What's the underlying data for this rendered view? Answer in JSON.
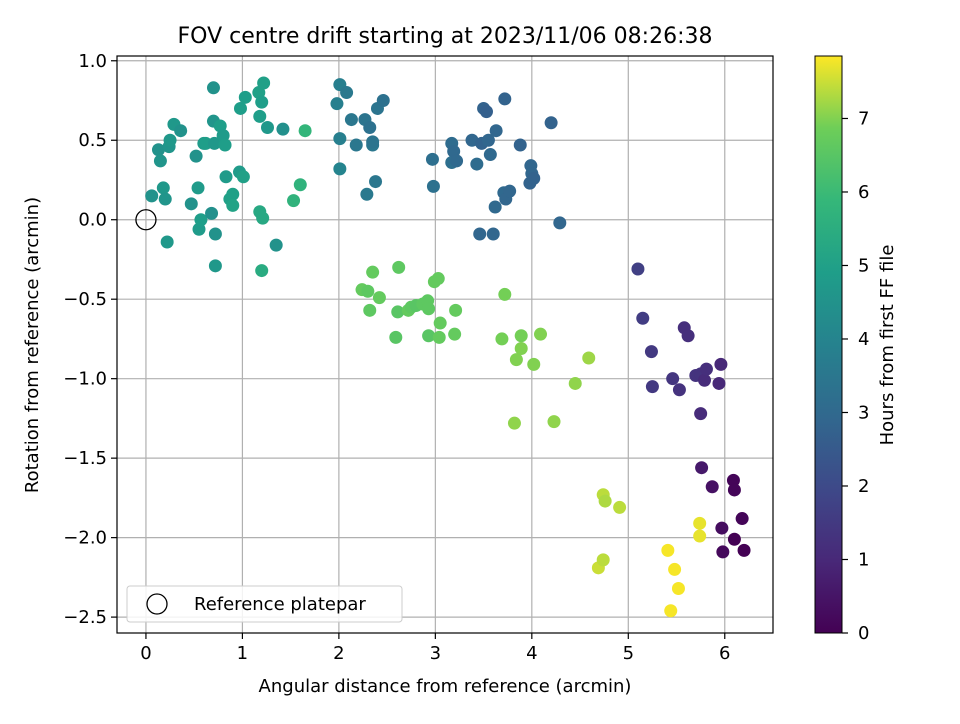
{
  "chart_data": {
    "type": "scatter",
    "title": "FOV centre drift starting at 2023/11/06 08:26:38",
    "xlabel": "Angular distance from reference (arcmin)",
    "ylabel": "Rotation from reference (arcmin)",
    "xlim": [
      -0.3,
      6.5
    ],
    "ylim": [
      -2.6,
      1.03
    ],
    "xticks": [
      0,
      1,
      2,
      3,
      4,
      5,
      6
    ],
    "yticks": [
      -2.5,
      -2.0,
      -1.5,
      -1.0,
      -0.5,
      0.0,
      0.5,
      1.0
    ],
    "xtick_labels": [
      "0",
      "1",
      "2",
      "3",
      "4",
      "5",
      "6"
    ],
    "ytick_labels": [
      "−2.5",
      "−2.0",
      "−1.5",
      "−1.0",
      "−0.5",
      "0.0",
      "0.5",
      "1.0"
    ],
    "grid": true,
    "colormap": "viridis",
    "colorbar": {
      "label": "Hours from first FF file",
      "range": [
        0,
        7.85
      ],
      "ticks": [
        0,
        1,
        2,
        3,
        4,
        5,
        6,
        7
      ],
      "tick_labels": [
        "0",
        "1",
        "2",
        "3",
        "4",
        "5",
        "6",
        "7"
      ]
    },
    "legend": {
      "position": "lower-left",
      "entries": [
        {
          "label": "Reference platepar",
          "marker": "open-circle"
        }
      ]
    },
    "reference_point": {
      "x": 0,
      "y": 0
    },
    "points": [
      {
        "x": 0.06,
        "y": 0.15,
        "h": 4.5
      },
      {
        "x": 0.13,
        "y": 0.44,
        "h": 4.5
      },
      {
        "x": 0.15,
        "y": 0.37,
        "h": 4.6
      },
      {
        "x": 0.18,
        "y": 0.2,
        "h": 4.7
      },
      {
        "x": 0.2,
        "y": 0.13,
        "h": 4.6
      },
      {
        "x": 0.22,
        "y": -0.14,
        "h": 4.7
      },
      {
        "x": 0.24,
        "y": 0.46,
        "h": 4.6
      },
      {
        "x": 0.25,
        "y": 0.5,
        "h": 4.7
      },
      {
        "x": 0.29,
        "y": 0.6,
        "h": 4.7
      },
      {
        "x": 0.36,
        "y": 0.56,
        "h": 4.5
      },
      {
        "x": 0.47,
        "y": 0.1,
        "h": 4.5
      },
      {
        "x": 0.52,
        "y": 0.4,
        "h": 4.5
      },
      {
        "x": 0.54,
        "y": 0.2,
        "h": 4.8
      },
      {
        "x": 0.55,
        "y": -0.06,
        "h": 4.8
      },
      {
        "x": 0.57,
        "y": 0.0,
        "h": 4.9
      },
      {
        "x": 0.6,
        "y": 0.48,
        "h": 4.8
      },
      {
        "x": 0.62,
        "y": 0.48,
        "h": 4.9
      },
      {
        "x": 0.68,
        "y": 0.04,
        "h": 4.4
      },
      {
        "x": 0.7,
        "y": 0.83,
        "h": 4.5
      },
      {
        "x": 0.7,
        "y": 0.62,
        "h": 4.6
      },
      {
        "x": 0.71,
        "y": 0.48,
        "h": 4.7
      },
      {
        "x": 0.72,
        "y": -0.09,
        "h": 4.5
      },
      {
        "x": 0.72,
        "y": -0.29,
        "h": 4.7
      },
      {
        "x": 0.77,
        "y": 0.59,
        "h": 4.9
      },
      {
        "x": 0.8,
        "y": 0.53,
        "h": 4.8
      },
      {
        "x": 0.82,
        "y": 0.47,
        "h": 4.9
      },
      {
        "x": 0.83,
        "y": 0.27,
        "h": 4.8
      },
      {
        "x": 0.87,
        "y": 0.13,
        "h": 5.0
      },
      {
        "x": 0.9,
        "y": 0.16,
        "h": 5.0
      },
      {
        "x": 0.9,
        "y": 0.09,
        "h": 5.1
      },
      {
        "x": 0.97,
        "y": 0.3,
        "h": 4.8
      },
      {
        "x": 0.98,
        "y": 0.7,
        "h": 4.9
      },
      {
        "x": 1.03,
        "y": 0.77,
        "h": 4.9
      },
      {
        "x": 1.01,
        "y": 0.27,
        "h": 5.0
      },
      {
        "x": 1.17,
        "y": 0.8,
        "h": 5.0
      },
      {
        "x": 1.18,
        "y": 0.65,
        "h": 4.9
      },
      {
        "x": 1.2,
        "y": 0.74,
        "h": 4.9
      },
      {
        "x": 1.22,
        "y": 0.86,
        "h": 5.0
      },
      {
        "x": 1.26,
        "y": 0.58,
        "h": 4.7
      },
      {
        "x": 1.18,
        "y": 0.05,
        "h": 5.3
      },
      {
        "x": 1.21,
        "y": 0.01,
        "h": 5.3
      },
      {
        "x": 1.2,
        "y": -0.32,
        "h": 5.4
      },
      {
        "x": 1.35,
        "y": -0.16,
        "h": 4.5
      },
      {
        "x": 1.42,
        "y": 0.57,
        "h": 4.4
      },
      {
        "x": 1.53,
        "y": 0.12,
        "h": 5.7
      },
      {
        "x": 1.6,
        "y": 0.22,
        "h": 5.7
      },
      {
        "x": 1.65,
        "y": 0.56,
        "h": 5.8
      },
      {
        "x": 1.98,
        "y": 0.73,
        "h": 3.8
      },
      {
        "x": 2.01,
        "y": 0.85,
        "h": 3.8
      },
      {
        "x": 2.01,
        "y": 0.51,
        "h": 3.8
      },
      {
        "x": 2.01,
        "y": 0.32,
        "h": 4.0
      },
      {
        "x": 2.08,
        "y": 0.8,
        "h": 3.6
      },
      {
        "x": 2.13,
        "y": 0.63,
        "h": 3.5
      },
      {
        "x": 2.18,
        "y": 0.47,
        "h": 3.5
      },
      {
        "x": 2.27,
        "y": 0.63,
        "h": 3.4
      },
      {
        "x": 2.29,
        "y": 0.16,
        "h": 3.6
      },
      {
        "x": 2.32,
        "y": 0.58,
        "h": 3.3
      },
      {
        "x": 2.35,
        "y": 0.47,
        "h": 3.5
      },
      {
        "x": 2.35,
        "y": 0.49,
        "h": 3.4
      },
      {
        "x": 2.38,
        "y": 0.24,
        "h": 3.5
      },
      {
        "x": 2.4,
        "y": 0.7,
        "h": 3.4
      },
      {
        "x": 2.46,
        "y": 0.75,
        "h": 3.3
      },
      {
        "x": 2.97,
        "y": 0.38,
        "h": 3.2
      },
      {
        "x": 2.98,
        "y": 0.21,
        "h": 3.3
      },
      {
        "x": 3.17,
        "y": 0.48,
        "h": 3.1
      },
      {
        "x": 3.17,
        "y": 0.36,
        "h": 3.2
      },
      {
        "x": 3.19,
        "y": 0.43,
        "h": 3.0
      },
      {
        "x": 3.22,
        "y": 0.37,
        "h": 3.0
      },
      {
        "x": 3.38,
        "y": 0.5,
        "h": 2.9
      },
      {
        "x": 3.43,
        "y": 0.35,
        "h": 3.1
      },
      {
        "x": 3.46,
        "y": -0.09,
        "h": 2.9
      },
      {
        "x": 3.48,
        "y": 0.48,
        "h": 2.8
      },
      {
        "x": 3.5,
        "y": 0.7,
        "h": 2.8
      },
      {
        "x": 3.53,
        "y": 0.68,
        "h": 2.7
      },
      {
        "x": 3.55,
        "y": 0.5,
        "h": 2.9
      },
      {
        "x": 3.57,
        "y": 0.41,
        "h": 3.0
      },
      {
        "x": 3.6,
        "y": -0.09,
        "h": 2.9
      },
      {
        "x": 3.62,
        "y": 0.08,
        "h": 3.0
      },
      {
        "x": 3.63,
        "y": 0.56,
        "h": 2.9
      },
      {
        "x": 3.71,
        "y": 0.17,
        "h": 3.0
      },
      {
        "x": 3.72,
        "y": 0.76,
        "h": 2.8
      },
      {
        "x": 3.73,
        "y": 0.13,
        "h": 2.9
      },
      {
        "x": 3.77,
        "y": 0.18,
        "h": 2.9
      },
      {
        "x": 3.88,
        "y": 0.47,
        "h": 2.8
      },
      {
        "x": 3.98,
        "y": 0.23,
        "h": 2.8
      },
      {
        "x": 3.99,
        "y": 0.34,
        "h": 2.9
      },
      {
        "x": 4.0,
        "y": 0.29,
        "h": 2.9
      },
      {
        "x": 4.02,
        "y": 0.26,
        "h": 2.8
      },
      {
        "x": 4.2,
        "y": 0.61,
        "h": 2.8
      },
      {
        "x": 4.29,
        "y": -0.02,
        "h": 2.9
      },
      {
        "x": 2.24,
        "y": -0.44,
        "h": 6.7
      },
      {
        "x": 2.3,
        "y": -0.45,
        "h": 6.6
      },
      {
        "x": 2.32,
        "y": -0.57,
        "h": 6.6
      },
      {
        "x": 2.35,
        "y": -0.33,
        "h": 6.7
      },
      {
        "x": 2.42,
        "y": -0.49,
        "h": 6.7
      },
      {
        "x": 2.59,
        "y": -0.74,
        "h": 6.5
      },
      {
        "x": 2.61,
        "y": -0.58,
        "h": 6.5
      },
      {
        "x": 2.62,
        "y": -0.3,
        "h": 6.6
      },
      {
        "x": 2.72,
        "y": -0.57,
        "h": 6.7
      },
      {
        "x": 2.75,
        "y": -0.55,
        "h": 6.6
      },
      {
        "x": 2.8,
        "y": -0.54,
        "h": 6.5
      },
      {
        "x": 2.87,
        "y": -0.53,
        "h": 6.6
      },
      {
        "x": 2.92,
        "y": -0.51,
        "h": 6.6
      },
      {
        "x": 2.93,
        "y": -0.73,
        "h": 6.5
      },
      {
        "x": 2.93,
        "y": -0.56,
        "h": 6.6
      },
      {
        "x": 2.99,
        "y": -0.39,
        "h": 6.7
      },
      {
        "x": 3.03,
        "y": -0.37,
        "h": 6.7
      },
      {
        "x": 3.04,
        "y": -0.74,
        "h": 6.7
      },
      {
        "x": 3.05,
        "y": -0.65,
        "h": 6.7
      },
      {
        "x": 3.2,
        "y": -0.72,
        "h": 6.7
      },
      {
        "x": 3.21,
        "y": -0.57,
        "h": 6.7
      },
      {
        "x": 3.72,
        "y": -0.47,
        "h": 6.9
      },
      {
        "x": 3.69,
        "y": -0.75,
        "h": 6.9
      },
      {
        "x": 3.84,
        "y": -0.88,
        "h": 7.0
      },
      {
        "x": 3.89,
        "y": -0.73,
        "h": 6.9
      },
      {
        "x": 3.89,
        "y": -0.81,
        "h": 7.0
      },
      {
        "x": 3.82,
        "y": -1.28,
        "h": 7.1
      },
      {
        "x": 4.02,
        "y": -0.91,
        "h": 7.0
      },
      {
        "x": 4.09,
        "y": -0.72,
        "h": 7.0
      },
      {
        "x": 4.23,
        "y": -1.27,
        "h": 7.1
      },
      {
        "x": 4.45,
        "y": -1.03,
        "h": 7.1
      },
      {
        "x": 4.59,
        "y": -0.87,
        "h": 7.2
      },
      {
        "x": 4.69,
        "y": -2.19,
        "h": 7.5
      },
      {
        "x": 4.74,
        "y": -2.14,
        "h": 7.4
      },
      {
        "x": 4.74,
        "y": -1.73,
        "h": 7.4
      },
      {
        "x": 4.76,
        "y": -1.77,
        "h": 7.3
      },
      {
        "x": 4.91,
        "y": -1.81,
        "h": 7.4
      },
      {
        "x": 5.41,
        "y": -2.08,
        "h": 7.8
      },
      {
        "x": 5.44,
        "y": -2.46,
        "h": 7.8
      },
      {
        "x": 5.48,
        "y": -2.2,
        "h": 7.8
      },
      {
        "x": 5.52,
        "y": -2.32,
        "h": 7.8
      },
      {
        "x": 5.74,
        "y": -1.91,
        "h": 7.7
      },
      {
        "x": 5.74,
        "y": -1.99,
        "h": 7.7
      },
      {
        "x": 5.1,
        "y": -0.31,
        "h": 1.7
      },
      {
        "x": 5.15,
        "y": -0.62,
        "h": 1.6
      },
      {
        "x": 5.24,
        "y": -0.83,
        "h": 1.5
      },
      {
        "x": 5.25,
        "y": -1.05,
        "h": 1.5
      },
      {
        "x": 5.46,
        "y": -1.0,
        "h": 1.4
      },
      {
        "x": 5.53,
        "y": -1.07,
        "h": 1.3
      },
      {
        "x": 5.58,
        "y": -0.68,
        "h": 1.2
      },
      {
        "x": 5.62,
        "y": -0.73,
        "h": 1.2
      },
      {
        "x": 5.7,
        "y": -0.98,
        "h": 1.3
      },
      {
        "x": 5.75,
        "y": -0.97,
        "h": 1.3
      },
      {
        "x": 5.75,
        "y": -1.22,
        "h": 1.1
      },
      {
        "x": 5.79,
        "y": -1.01,
        "h": 1.1
      },
      {
        "x": 5.81,
        "y": -0.94,
        "h": 1.2
      },
      {
        "x": 5.94,
        "y": -1.03,
        "h": 1.0
      },
      {
        "x": 5.96,
        "y": -0.91,
        "h": 1.0
      },
      {
        "x": 5.76,
        "y": -1.56,
        "h": 0.6
      },
      {
        "x": 5.87,
        "y": -1.68,
        "h": 0.4
      },
      {
        "x": 5.97,
        "y": -1.94,
        "h": 0.3
      },
      {
        "x": 5.98,
        "y": -2.09,
        "h": 0.2
      },
      {
        "x": 6.09,
        "y": -1.64,
        "h": 0.1
      },
      {
        "x": 6.1,
        "y": -1.7,
        "h": 0.1
      },
      {
        "x": 6.1,
        "y": -2.01,
        "h": 0.0
      },
      {
        "x": 6.18,
        "y": -1.88,
        "h": 0.1
      },
      {
        "x": 6.2,
        "y": -2.08,
        "h": 0.0
      }
    ]
  }
}
